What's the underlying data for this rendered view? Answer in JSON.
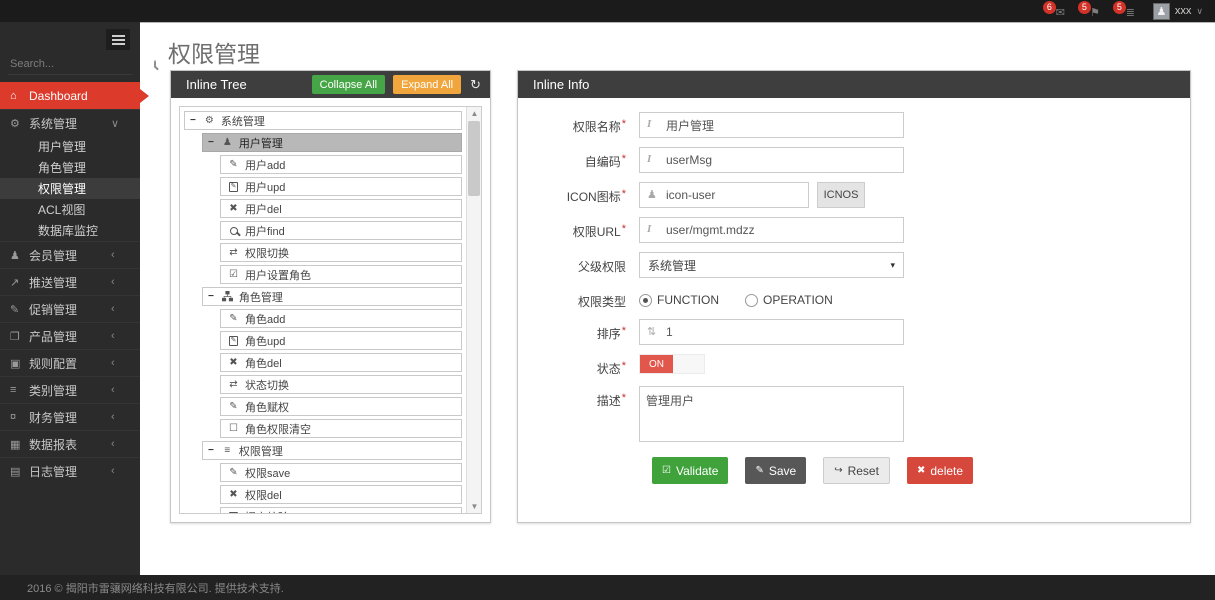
{
  "topbar": {
    "badges": [
      {
        "icon": "envelope",
        "count": "6"
      },
      {
        "icon": "flag",
        "count": "5"
      },
      {
        "icon": "tasks",
        "count": "5"
      }
    ],
    "user": {
      "name": "xxx"
    }
  },
  "sidebar": {
    "search": {
      "placeholder": "Search..."
    },
    "menu": [
      {
        "label": "Dashboard",
        "icon": "home",
        "type": "active"
      },
      {
        "label": "系统管理",
        "icon": "gears",
        "type": "open",
        "chevron": "angle-down",
        "children": [
          {
            "label": "用户管理",
            "active": false
          },
          {
            "label": "角色管理",
            "active": false
          },
          {
            "label": "权限管理",
            "active": true
          },
          {
            "label": "ACL视图",
            "active": false
          },
          {
            "label": "数据库监控",
            "active": false
          }
        ]
      },
      {
        "label": "会员管理",
        "icon": "user",
        "chevron": "angle-left"
      },
      {
        "label": "推送管理",
        "icon": "share",
        "chevron": "angle-left"
      },
      {
        "label": "促销管理",
        "icon": "pencil",
        "chevron": "angle-left"
      },
      {
        "label": "产品管理",
        "icon": "book",
        "chevron": "angle-left"
      },
      {
        "label": "规则配置",
        "icon": "table",
        "chevron": "angle-left"
      },
      {
        "label": "类别管理",
        "icon": "list",
        "chevron": "angle-left"
      },
      {
        "label": "财务管理",
        "icon": "key",
        "chevron": "angle-left"
      },
      {
        "label": "数据报表",
        "icon": "chart",
        "chevron": "angle-left"
      },
      {
        "label": "日志管理",
        "icon": "calendar",
        "chevron": "angle-left"
      }
    ]
  },
  "page": {
    "title": "权限管理"
  },
  "tree_panel": {
    "title": "Inline Tree",
    "icon": "sitemap",
    "collapse_button": "Collapse All",
    "expand_button": "Expand All",
    "refresh_icon": "refresh",
    "nodes": [
      {
        "label": "系统管理",
        "icon": "gears",
        "level": 0,
        "expanded": true
      },
      {
        "label": "用户管理",
        "icon": "user",
        "level": 1,
        "expanded": true,
        "selected": true
      },
      {
        "label": "用户add",
        "icon": "pencil",
        "level": 2
      },
      {
        "label": "用户upd",
        "icon": "edit",
        "level": 2
      },
      {
        "label": "用户del",
        "icon": "x",
        "level": 2
      },
      {
        "label": "用户find",
        "icon": "search",
        "level": 2
      },
      {
        "label": "权限切换",
        "icon": "retweet",
        "level": 2
      },
      {
        "label": "用户设置角色",
        "icon": "check-square",
        "level": 2
      },
      {
        "label": "角色管理",
        "icon": "sitemap",
        "level": 1,
        "expanded": true
      },
      {
        "label": "角色add",
        "icon": "pencil",
        "level": 2
      },
      {
        "label": "角色upd",
        "icon": "edit",
        "level": 2
      },
      {
        "label": "角色del",
        "icon": "x",
        "level": 2
      },
      {
        "label": "状态切换",
        "icon": "retweet",
        "level": 2
      },
      {
        "label": "角色赋权",
        "icon": "pencil",
        "level": 2
      },
      {
        "label": "角色权限清空",
        "icon": "square",
        "level": 2
      },
      {
        "label": "权限管理",
        "icon": "list",
        "level": 1,
        "expanded": true
      },
      {
        "label": "权限save",
        "icon": "pencil",
        "level": 2
      },
      {
        "label": "权限del",
        "icon": "x",
        "level": 2
      },
      {
        "label": "提交校验",
        "icon": "edit",
        "level": 2
      }
    ]
  },
  "info_panel": {
    "title": "Inline Info",
    "icon": "sitemap",
    "fields": [
      {
        "label": "权限名称",
        "required": true,
        "type": "text",
        "icon": "italic",
        "value": "用户管理"
      },
      {
        "label": "自编码",
        "required": true,
        "type": "text",
        "icon": "italic",
        "value": "userMsg"
      },
      {
        "label": "ICON图标",
        "required": true,
        "type": "text-button",
        "icon": "user",
        "value": "icon-user",
        "button": "ICNOS"
      },
      {
        "label": "权限URL",
        "required": true,
        "type": "text",
        "icon": "italic",
        "value": "user/mgmt.mdzz"
      },
      {
        "label": "父级权限",
        "required": false,
        "type": "select",
        "value": "系统管理"
      },
      {
        "label": "权限类型",
        "required": false,
        "type": "radio",
        "options": [
          {
            "label": "FUNCTION",
            "checked": true
          },
          {
            "label": "OPERATION",
            "checked": false
          }
        ]
      },
      {
        "label": "排序",
        "required": true,
        "type": "text",
        "icon": "arrows-v",
        "value": "1"
      },
      {
        "label": "状态",
        "required": true,
        "type": "toggle",
        "value": "ON"
      },
      {
        "label": "描述",
        "required": true,
        "type": "textarea",
        "value": "管理用户"
      }
    ],
    "buttons": [
      {
        "label": "Validate",
        "icon": "check-square",
        "style": "green"
      },
      {
        "label": "Save",
        "icon": "pencil",
        "style": "dark"
      },
      {
        "label": "Reset",
        "icon": "reset",
        "style": "light"
      },
      {
        "label": "delete",
        "icon": "x",
        "style": "red"
      }
    ]
  },
  "footer": {
    "text": "2016 © 揭阳市雷骧网络科技有限公司. 提供技术支持."
  }
}
